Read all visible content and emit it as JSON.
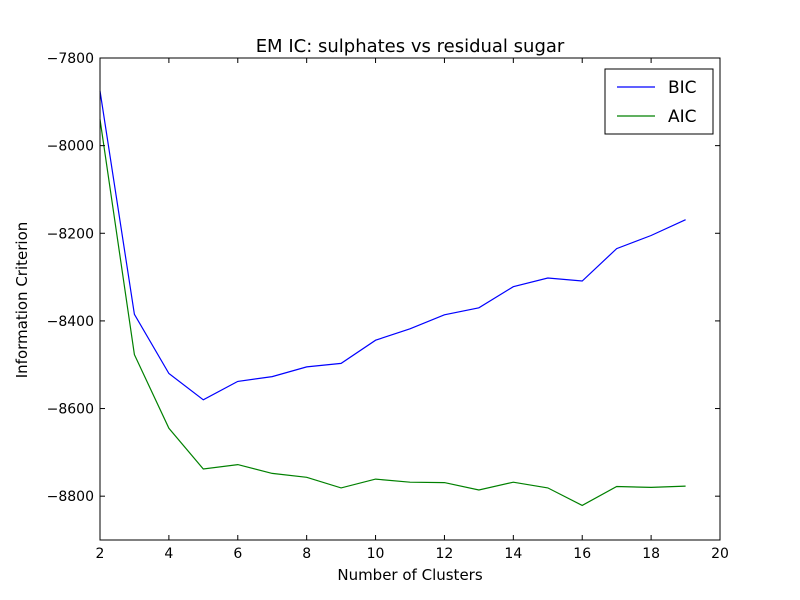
{
  "chart_data": {
    "type": "line",
    "title": "EM IC: sulphates vs residual sugar",
    "xlabel": "Number of Clusters",
    "ylabel": "Information Criterion",
    "xlim": [
      2,
      20
    ],
    "ylim": [
      -8900,
      -7800
    ],
    "xticks": [
      2,
      4,
      6,
      8,
      10,
      12,
      14,
      16,
      18,
      20
    ],
    "yticks": [
      -7800,
      -8000,
      -8200,
      -8400,
      -8600,
      -8800
    ],
    "grid": false,
    "legend_position": "top-right",
    "x": [
      2,
      3,
      4,
      5,
      6,
      7,
      8,
      9,
      10,
      11,
      12,
      13,
      14,
      15,
      16,
      17,
      18,
      19
    ],
    "series": [
      {
        "name": "BIC",
        "color": "#0000ff",
        "values": [
          -7875,
          -8385,
          -8520,
          -8580,
          -8538,
          -8527,
          -8505,
          -8497,
          -8444,
          -8418,
          -8386,
          -8370,
          -8322,
          -8302,
          -8309,
          -8235,
          -8205,
          -8169
        ]
      },
      {
        "name": "AIC",
        "color": "#008000",
        "values": [
          -7940,
          -8477,
          -8645,
          -8738,
          -8728,
          -8748,
          -8757,
          -8781,
          -8761,
          -8768,
          -8769,
          -8786,
          -8768,
          -8781,
          -8821,
          -8778,
          -8780,
          -8777
        ]
      }
    ]
  }
}
